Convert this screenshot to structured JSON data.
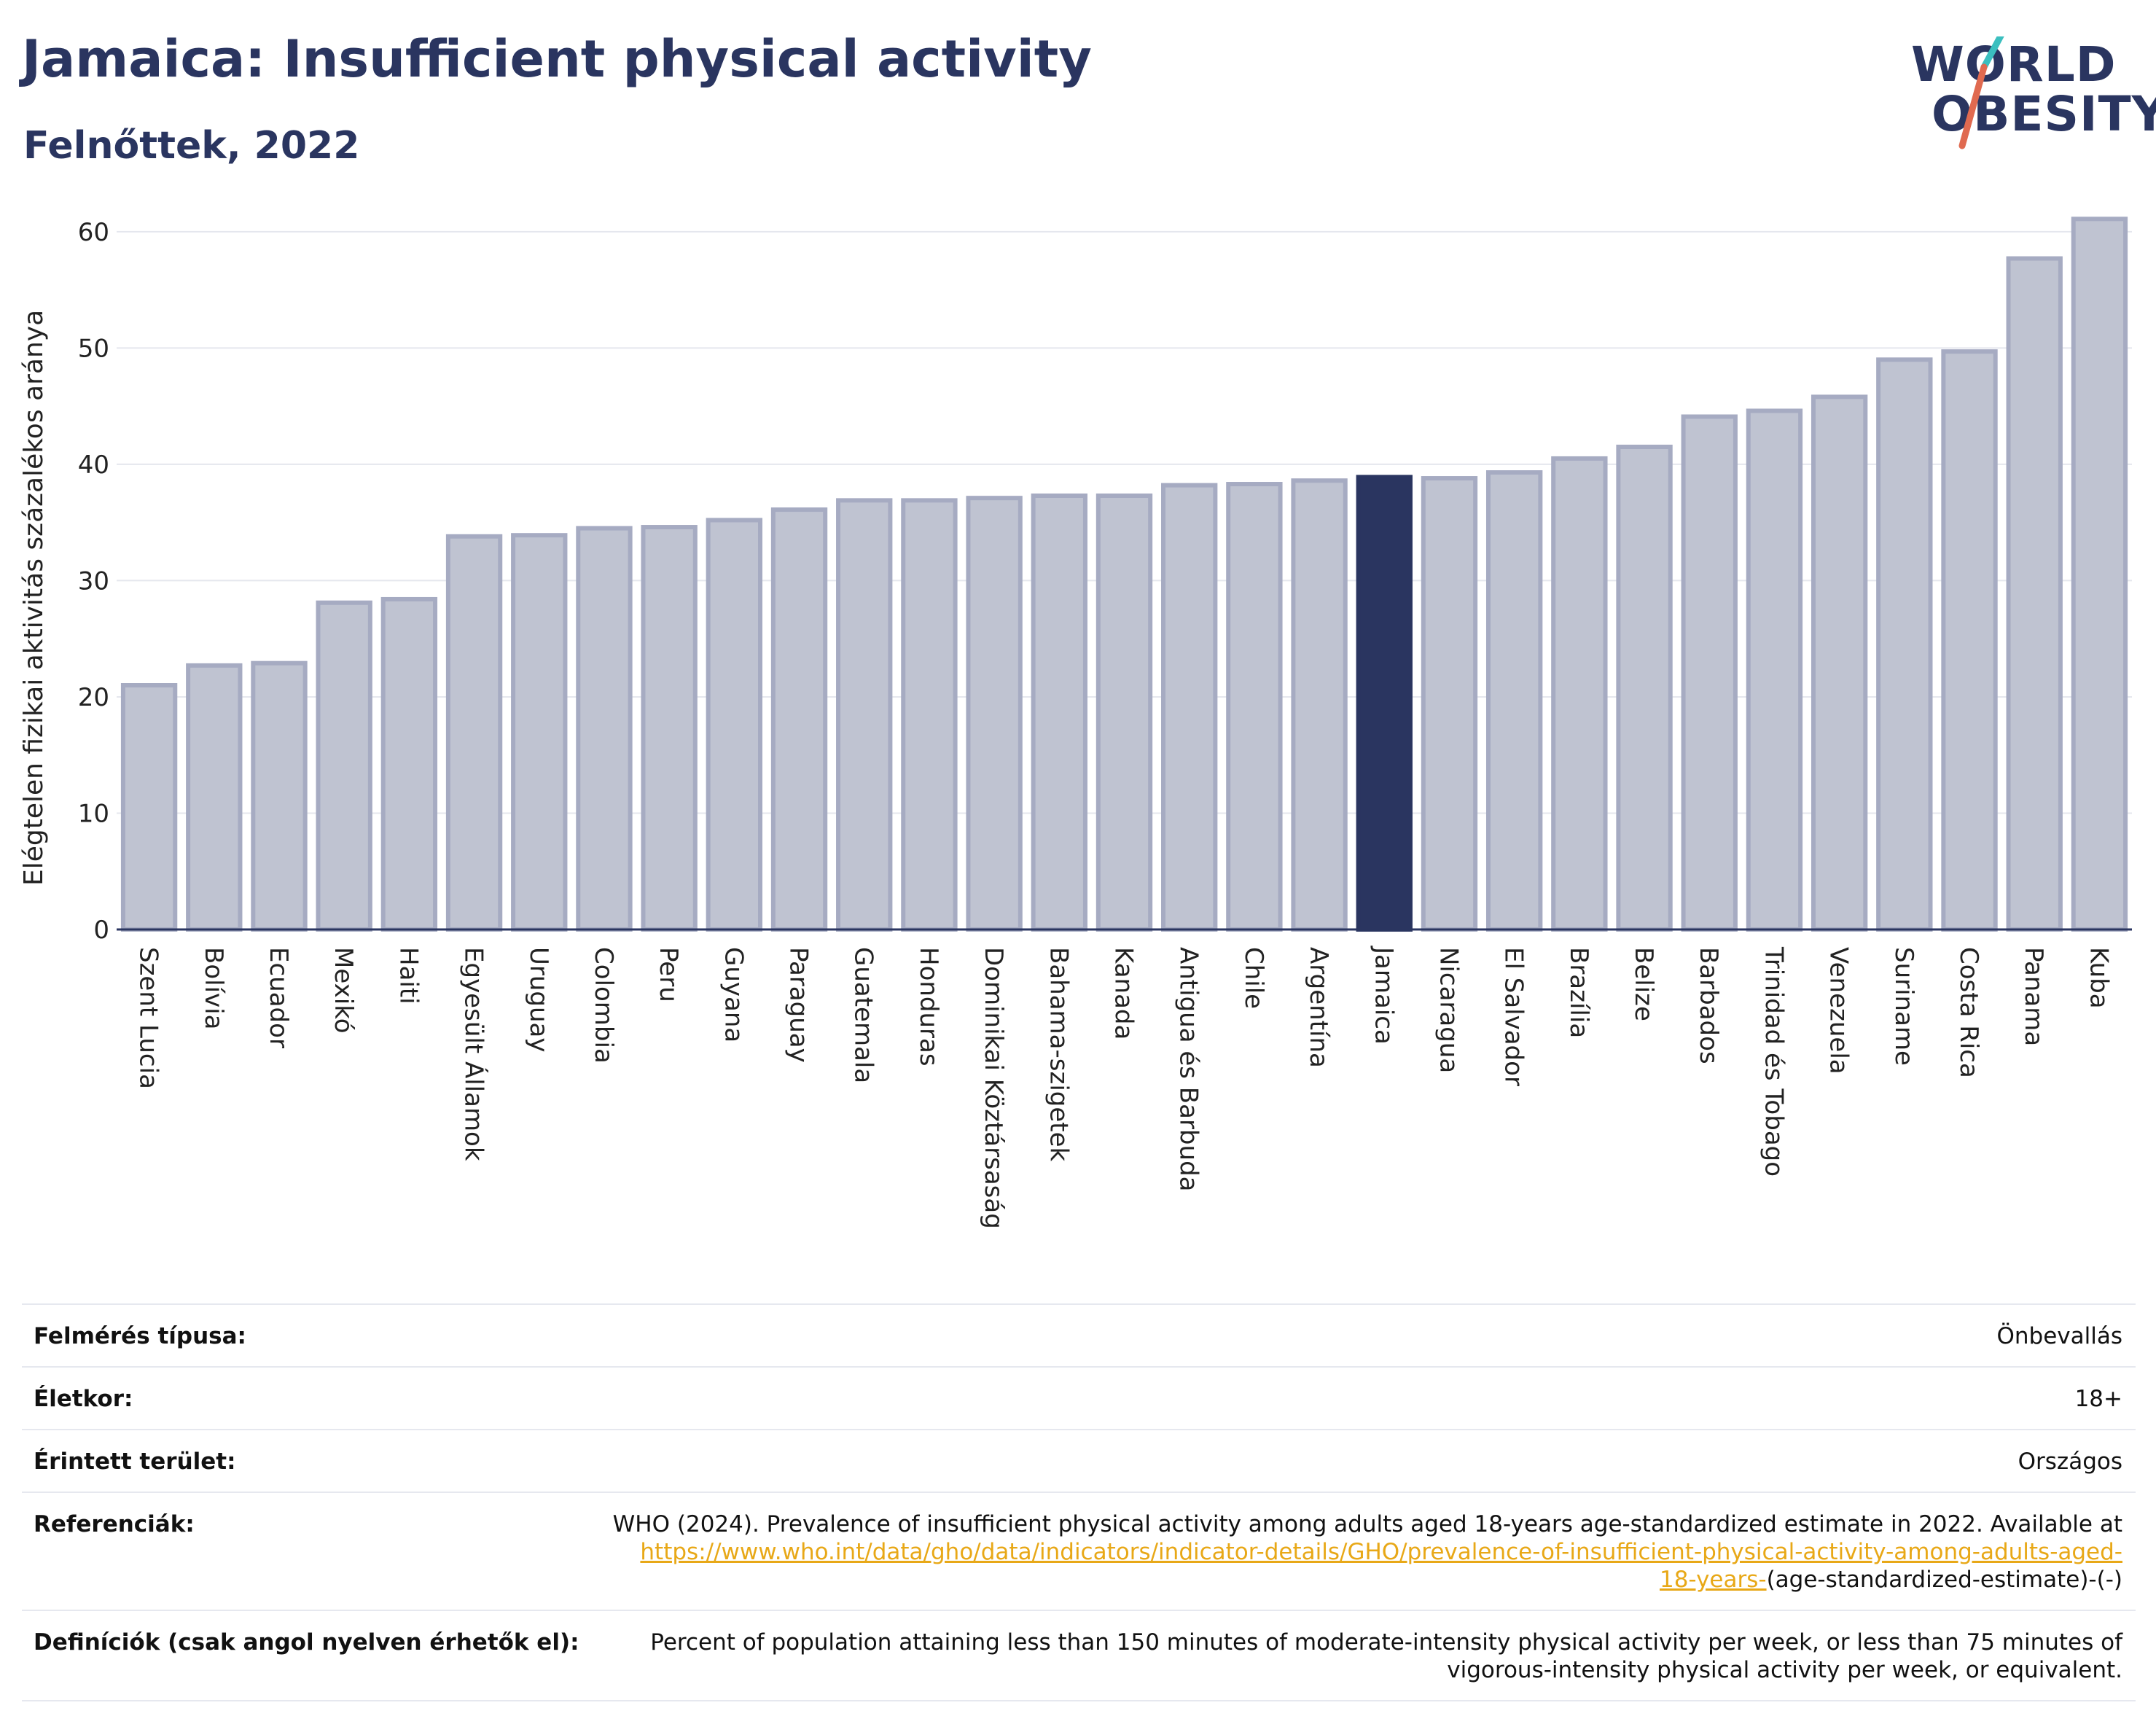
{
  "title": "Jamaica: Insufficient physical activity",
  "subtitle": "Felnőttek, 2022",
  "logo": {
    "line1": "WORLD",
    "line2": "OBESITY"
  },
  "colors": {
    "bar": "#bfc3d1",
    "bar_edge": "#a6abc2",
    "highlight": "#2a3560",
    "grid": "#e5e7ee",
    "axis": "#2a3560",
    "link": "#e8a817",
    "logo_teal": "#3bbfbf",
    "logo_red": "#e06a50"
  },
  "chart_data": {
    "type": "bar",
    "ylabel": "Elégtelen fizikai aktivitás százalékos aránya",
    "ylim": [
      0,
      63
    ],
    "yticks": [
      0,
      10,
      20,
      30,
      40,
      50,
      60
    ],
    "grid": true,
    "highlight": "Jamaica",
    "categories": [
      "Szent Lucia",
      "Bolívia",
      "Ecuador",
      "Mexikó",
      "Haiti",
      "Egyesült Államok",
      "Uruguay",
      "Colombia",
      "Peru",
      "Guyana",
      "Paraguay",
      "Guatemala",
      "Honduras",
      "Dominikai Köztársaság",
      "Bahama-szigetek",
      "Kanada",
      "Antigua és Barbuda",
      "Chile",
      "Argentína",
      "Jamaica",
      "Nicaragua",
      "El Salvador",
      "Brazília",
      "Belize",
      "Barbados",
      "Trinidad és Tobago",
      "Venezuela",
      "Suriname",
      "Costa Rica",
      "Panama",
      "Kuba"
    ],
    "values": [
      21.0,
      22.7,
      22.9,
      28.1,
      28.4,
      33.8,
      33.9,
      34.5,
      34.6,
      35.2,
      36.1,
      36.9,
      36.9,
      37.1,
      37.3,
      37.3,
      38.2,
      38.3,
      38.6,
      38.9,
      38.8,
      39.3,
      40.5,
      41.5,
      44.1,
      44.6,
      45.8,
      49.0,
      49.7,
      57.7,
      61.1
    ]
  },
  "info": {
    "survey_type": {
      "label": "Felmérés típusa:",
      "value": "Önbevallás"
    },
    "age": {
      "label": "Életkor:",
      "value": "18+"
    },
    "area": {
      "label": "Érintett terület:",
      "value": "Országos"
    },
    "references": {
      "label": "Referenciák:",
      "text": "WHO (2024). Prevalence of insufficient physical activity among adults aged 18-years age-standardized estimate in 2022. Available at",
      "link": "https://www.who.int/data/gho/data/indicators/indicator-details/GHO/prevalence-of-insufficient-physical-activity-among-adults-aged-18-years-",
      "suffix": "(age-standardized-estimate)-(-)"
    },
    "definitions": {
      "label": "Definíciók (csak angol nyelven érhetők el):",
      "value": "Percent of population attaining less than 150 minutes of moderate-intensity physical activity per week, or less than 75 minutes of vigorous-intensity physical activity per week, or equivalent."
    }
  }
}
